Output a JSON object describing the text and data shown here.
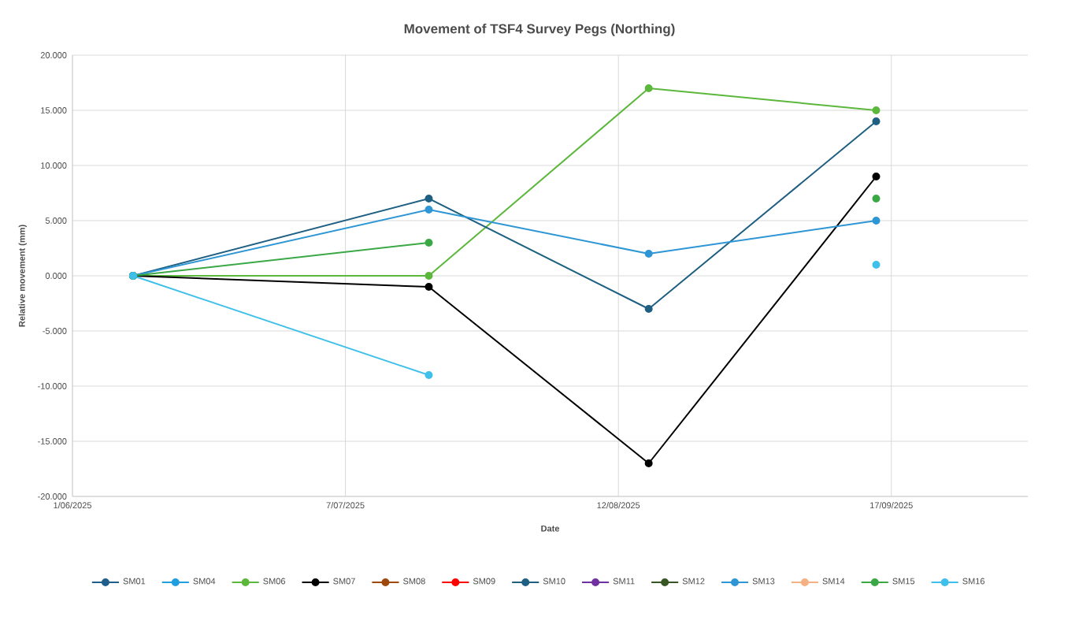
{
  "chart_data": {
    "type": "line",
    "title": "Movement of TSF4 Survey Pegs (Northing)",
    "xlabel": "Date",
    "ylabel": "Relative movement (mm)",
    "x": [
      "2025-06-09",
      "2025-07-18",
      "2025-08-16",
      "2025-09-15"
    ],
    "series": [
      {
        "name": "SM01",
        "color": "#1f5f8b",
        "values": [
          null,
          null,
          null,
          null
        ]
      },
      {
        "name": "SM04",
        "color": "#1f9fe0",
        "values": [
          null,
          null,
          null,
          null
        ]
      },
      {
        "name": "SM06",
        "color": "#5cb83c",
        "values": [
          0,
          0,
          17,
          15
        ]
      },
      {
        "name": "SM07",
        "color": "#000000",
        "values": [
          0,
          -1,
          -17,
          9
        ]
      },
      {
        "name": "SM08",
        "color": "#9e480e",
        "values": [
          null,
          null,
          null,
          null
        ]
      },
      {
        "name": "SM09",
        "color": "#ff0000",
        "values": [
          null,
          null,
          null,
          null
        ]
      },
      {
        "name": "SM10",
        "color": "#1e5f82",
        "values": [
          0,
          7,
          -3,
          14
        ]
      },
      {
        "name": "SM11",
        "color": "#7030a0",
        "values": [
          null,
          null,
          null,
          null
        ]
      },
      {
        "name": "SM12",
        "color": "#375623",
        "values": [
          null,
          null,
          null,
          null
        ]
      },
      {
        "name": "SM13",
        "color": "#2e96d4",
        "values": [
          0,
          6,
          2,
          5
        ]
      },
      {
        "name": "SM14",
        "color": "#f4b183",
        "values": [
          null,
          null,
          null,
          null
        ]
      },
      {
        "name": "SM15",
        "color": "#3aa845",
        "values": [
          0,
          3,
          null,
          7
        ]
      },
      {
        "name": "SM16",
        "color": "#3fc0ea",
        "values": [
          0,
          -9,
          null,
          1
        ]
      }
    ],
    "xlim": [
      "2025-06-01",
      "2025-10-05"
    ],
    "xticks": [
      {
        "value": "2025-06-01",
        "label": "1/06/2025"
      },
      {
        "value": "2025-07-07",
        "label": "7/07/2025"
      },
      {
        "value": "2025-08-12",
        "label": "12/08/2025"
      },
      {
        "value": "2025-09-17",
        "label": "17/09/2025"
      }
    ],
    "ylim": [
      -20,
      20
    ],
    "yticks": [
      {
        "value": -20,
        "label": "-20.000"
      },
      {
        "value": -15,
        "label": "-15.000"
      },
      {
        "value": -10,
        "label": "-10.000"
      },
      {
        "value": -5,
        "label": "-5.000"
      },
      {
        "value": 0,
        "label": "0.000"
      },
      {
        "value": 5,
        "label": "5.000"
      },
      {
        "value": 10,
        "label": "10.000"
      },
      {
        "value": 15,
        "label": "15.000"
      },
      {
        "value": 20,
        "label": "20.000"
      }
    ],
    "grid": true,
    "legend": "bottom",
    "marker": "circle",
    "line_style": "solid"
  }
}
